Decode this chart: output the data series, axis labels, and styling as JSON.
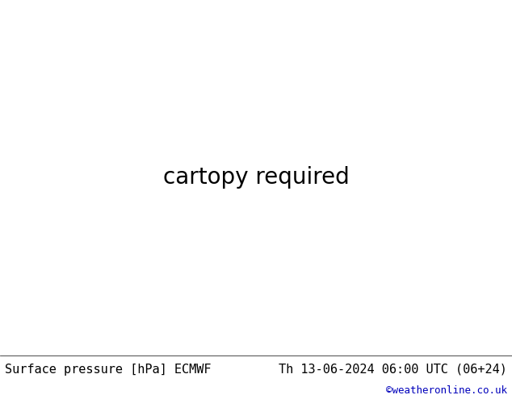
{
  "title_left": "Surface pressure [hPa] ECMWF",
  "title_right": "Th 13-06-2024 06:00 UTC (06+24)",
  "copyright": "©weatheronline.co.uk",
  "background_color": "#ffffff",
  "land_color": "#c8e8a0",
  "ocean_color": "#ffffff",
  "glacier_color": "#c8c8c8",
  "contour_base": 1013,
  "contour_interval": 4,
  "contour_range_min": 928,
  "contour_range_max": 1052,
  "contour_color_below": "#0000ff",
  "contour_color_above": "#ff0000",
  "contour_color_base": "#000000",
  "font_size_labels": 10,
  "font_size_title": 11,
  "contour_lw": 0.8,
  "contour_base_lw": 1.4,
  "label_fontsize": 5.5
}
